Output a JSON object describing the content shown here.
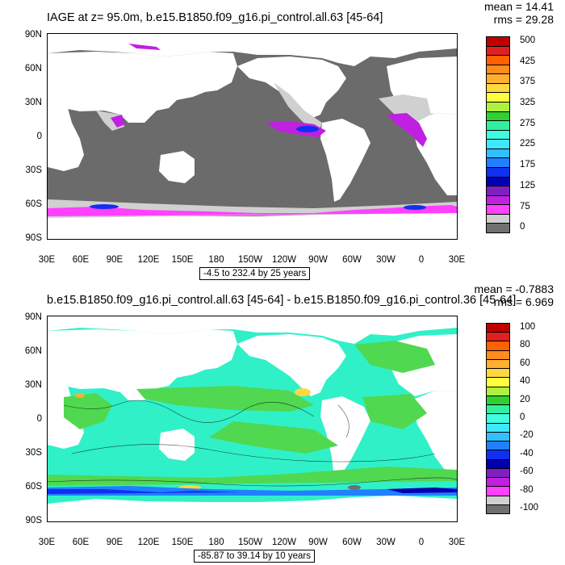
{
  "top": {
    "title": "IAGE at z=  95.0m, b.e15.B1850.f09_g16.pi_control.all.63 [45-64]",
    "mean": "mean = 14.41",
    "rms": "rms = 29.28",
    "range": "-4.5 to 232.4 by 25 years"
  },
  "bottom": {
    "title": "b.e15.B1850.f09_g16.pi_control.all.63 [45-64] - b.e15.B1850.f09_g16.pi_control.36 [45-64]",
    "mean": "mean = -0.7883",
    "rms": "rms = 6.969",
    "range": "-85.87 to 39.14 by 10 years"
  },
  "axes": {
    "lat_ticks": [
      "90N",
      "60N",
      "30N",
      "0",
      "30S",
      "60S",
      "90S"
    ],
    "lon_ticks": [
      "30E",
      "60E",
      "90E",
      "120E",
      "150E",
      "180",
      "150W",
      "120W",
      "90W",
      "60W",
      "30W",
      "0",
      "30E"
    ]
  },
  "chart_data": [
    {
      "type": "heatmap",
      "title": "IAGE at z=  95.0m, b.e15.B1850.f09_g16.pi_control.all.63 [45-64]",
      "units": "years",
      "colorbar_labels": [
        "500",
        "425",
        "375",
        "325",
        "275",
        "225",
        "175",
        "125",
        "75",
        "0"
      ],
      "colorbar_colors": [
        "#c00000",
        "#e02020",
        "#ff6000",
        "#ff8c20",
        "#ffb030",
        "#ffd840",
        "#ffff40",
        "#b0f040",
        "#30d030",
        "#30f0a0",
        "#40ffe0",
        "#40e8ff",
        "#30c0ff",
        "#2080ff",
        "#1030f0",
        "#0000b0",
        "#8020c0",
        "#c020e0",
        "#ff40ff",
        "#d0d0d0",
        "#707070"
      ],
      "xlim": [
        "30E",
        "30E"
      ],
      "ylim": [
        "90S",
        "90N"
      ],
      "stats": {
        "mean": 14.41,
        "rms": 29.28
      },
      "range": {
        "min": -4.5,
        "max": 232.4,
        "interval": 25
      }
    },
    {
      "type": "heatmap",
      "title": "b.e15.B1850.f09_g16.pi_control.all.63 [45-64] - b.e15.B1850.f09_g16.pi_control.36 [45-64]",
      "units": "years",
      "colorbar_labels": [
        "100",
        "80",
        "60",
        "40",
        "20",
        "0",
        "-20",
        "-40",
        "-60",
        "-80",
        "-100"
      ],
      "colorbar_colors": [
        "#c00000",
        "#e02020",
        "#ff6000",
        "#ff8c20",
        "#ffb030",
        "#ffd840",
        "#ffff40",
        "#b0f040",
        "#30d030",
        "#30f0a0",
        "#40ffe0",
        "#40e8ff",
        "#30c0ff",
        "#2080ff",
        "#1030f0",
        "#0000b0",
        "#8020c0",
        "#c020e0",
        "#ff40ff",
        "#d0d0d0",
        "#707070"
      ],
      "xlim": [
        "30E",
        "30E"
      ],
      "ylim": [
        "90S",
        "90N"
      ],
      "stats": {
        "mean": -0.7883,
        "rms": 6.969
      },
      "range": {
        "min": -85.87,
        "max": 39.14,
        "interval": 10
      }
    }
  ]
}
